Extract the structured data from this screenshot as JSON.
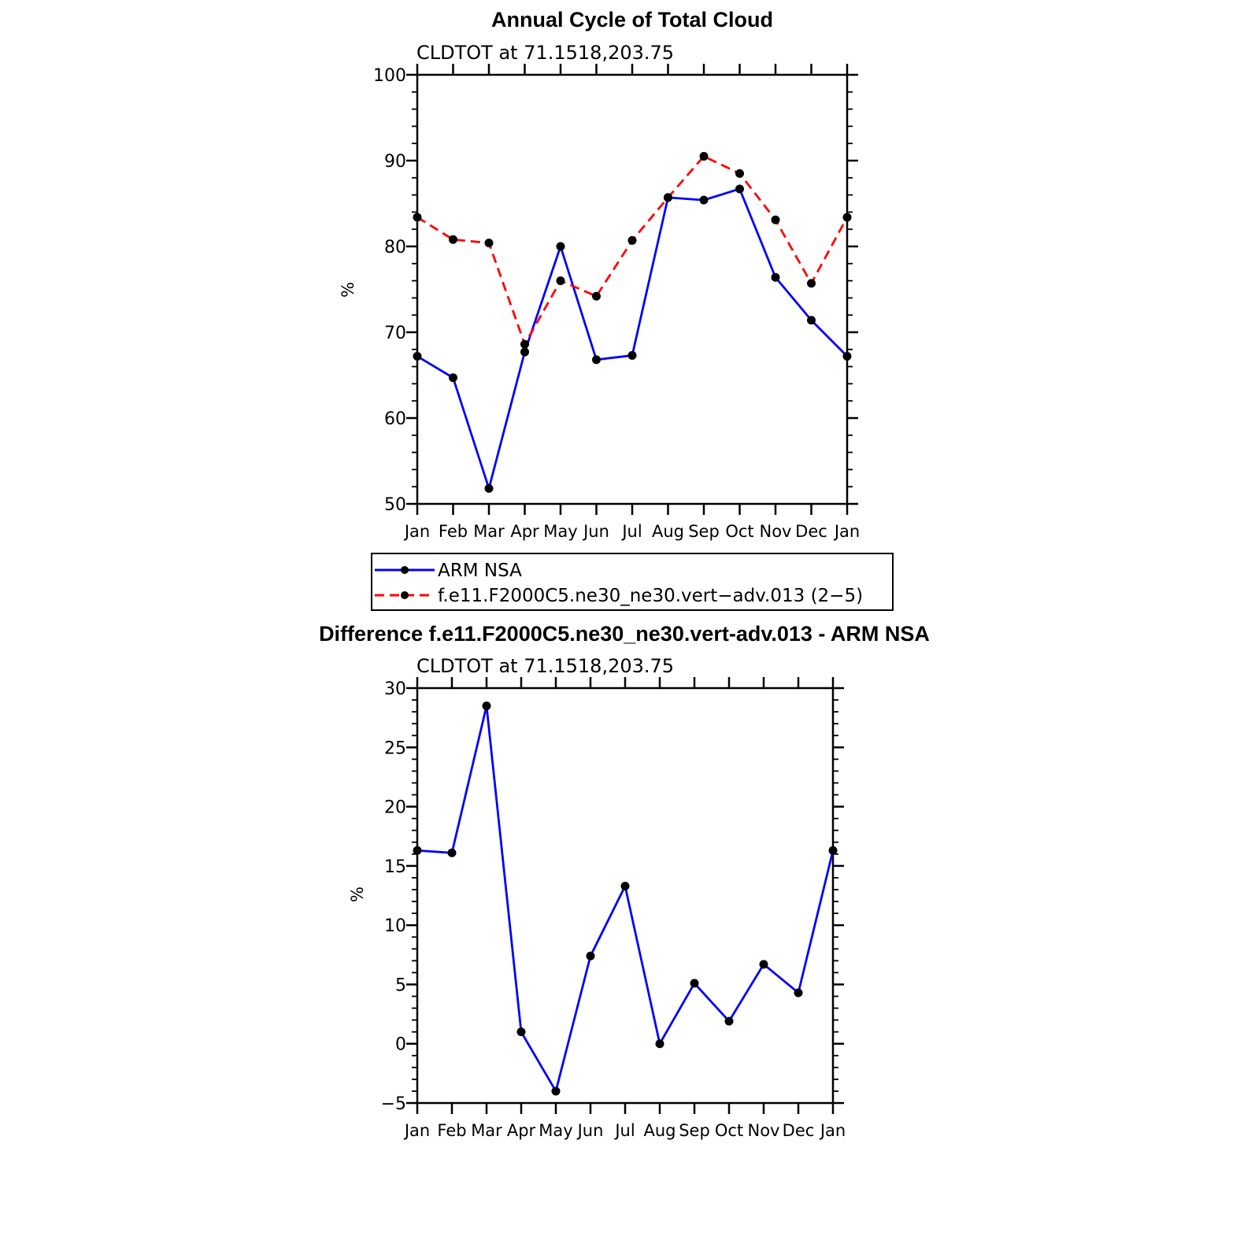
{
  "chart_data": [
    {
      "type": "line",
      "title": "Annual Cycle of Total Cloud",
      "subtitle": "CLDTOT at 71.1518,203.75",
      "xlabel": "",
      "ylabel": "%",
      "categories": [
        "Jan",
        "Feb",
        "Mar",
        "Apr",
        "May",
        "Jun",
        "Jul",
        "Aug",
        "Sep",
        "Oct",
        "Nov",
        "Dec",
        "Jan"
      ],
      "ylim": [
        50,
        100
      ],
      "yticks": [
        "50",
        "60",
        "70",
        "80",
        "90",
        "100"
      ],
      "series": [
        {
          "name": "ARM NSA",
          "color": "#0000ff",
          "dash": "solid",
          "values": [
            67.2,
            64.7,
            51.8,
            67.7,
            80.0,
            66.8,
            67.3,
            85.7,
            85.4,
            86.7,
            76.4,
            71.4,
            67.2
          ]
        },
        {
          "name": "f.e11.F2000C5.ne30_ne30.vert−adv.013 (2−5)",
          "color": "#ff0000",
          "dash": "dashed",
          "values": [
            83.4,
            80.8,
            80.4,
            68.6,
            76.0,
            74.2,
            80.7,
            85.7,
            90.5,
            88.5,
            83.1,
            75.7,
            83.4
          ]
        }
      ],
      "legend_position": "bottom"
    },
    {
      "type": "line",
      "title": "Difference f.e11.F2000C5.ne30_ne30.vert-adv.013 - ARM NSA",
      "subtitle": "CLDTOT at 71.1518,203.75",
      "xlabel": "",
      "ylabel": "%",
      "categories": [
        "Jan",
        "Feb",
        "Mar",
        "Apr",
        "May",
        "Jun",
        "Jul",
        "Aug",
        "Sep",
        "Oct",
        "Nov",
        "Dec",
        "Jan"
      ],
      "ylim": [
        -5,
        30
      ],
      "yticks": [
        "−5",
        "0",
        "5",
        "10",
        "15",
        "20",
        "25",
        "30"
      ],
      "series": [
        {
          "name": "Difference",
          "color": "#0000ff",
          "dash": "solid",
          "values": [
            16.3,
            16.1,
            28.5,
            1.0,
            -4.0,
            7.4,
            13.3,
            0.0,
            5.1,
            1.9,
            6.7,
            4.3,
            16.3
          ]
        }
      ]
    }
  ]
}
